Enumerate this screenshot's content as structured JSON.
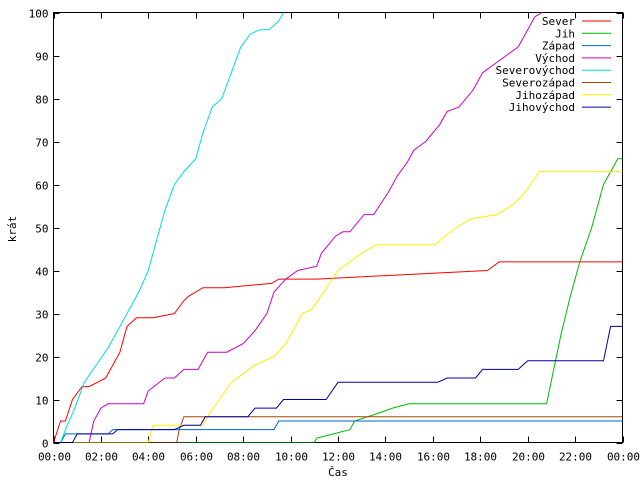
{
  "chart_data": {
    "type": "line",
    "title": "",
    "xlabel": "Čas",
    "ylabel": "krát",
    "xlim": [
      0,
      24
    ],
    "ylim": [
      0,
      100
    ],
    "x_ticks": [
      {
        "value": 0,
        "label": "00:00"
      },
      {
        "value": 2,
        "label": "02:00"
      },
      {
        "value": 4,
        "label": "04:00"
      },
      {
        "value": 6,
        "label": "06:00"
      },
      {
        "value": 8,
        "label": "08:00"
      },
      {
        "value": 10,
        "label": "10:00"
      },
      {
        "value": 12,
        "label": "12:00"
      },
      {
        "value": 14,
        "label": "14:00"
      },
      {
        "value": 16,
        "label": "16:00"
      },
      {
        "value": 18,
        "label": "18:00"
      },
      {
        "value": 20,
        "label": "20:00"
      },
      {
        "value": 22,
        "label": "22:00"
      },
      {
        "value": 24,
        "label": "00:00"
      }
    ],
    "y_ticks": [
      0,
      10,
      20,
      30,
      40,
      50,
      60,
      70,
      80,
      90,
      100
    ],
    "grid": false,
    "legend_position": "top-right",
    "series": [
      {
        "name": "Sever",
        "color": "#ff0000",
        "x": [
          0,
          0.3,
          0.5,
          0.8,
          1.2,
          1.5,
          2.2,
          2.5,
          2.8,
          3.0,
          3.1,
          3.3,
          3.5,
          3.9,
          4.2,
          5.1,
          5.5,
          5.7,
          6.3,
          7.2,
          9.2,
          9.5,
          11.1,
          18.3,
          18.8,
          24
        ],
        "y": [
          0,
          5,
          5,
          10,
          13,
          13,
          15,
          18,
          21,
          25,
          27,
          28,
          29,
          29,
          29,
          30,
          33,
          34,
          36,
          36,
          37,
          38,
          38,
          40,
          42,
          42
        ]
      },
      {
        "name": "Jih",
        "color": "#00bb00",
        "x": [
          0,
          11.0,
          11.1,
          11.8,
          12.5,
          12.7,
          13.8,
          14.3,
          15.0,
          20.8,
          21.1,
          21.4,
          21.8,
          22.2,
          22.7,
          23.2,
          23.5,
          23.8,
          24
        ],
        "y": [
          0,
          0,
          1,
          2,
          3,
          5,
          7,
          8,
          9,
          9,
          17,
          25,
          34,
          42,
          50,
          60,
          63,
          66,
          66
        ]
      },
      {
        "name": "Západ",
        "color": "#0066cc",
        "x": [
          0,
          0.3,
          0.5,
          2.3,
          2.5,
          9.3,
          9.5,
          24
        ],
        "y": [
          0,
          0,
          2,
          2,
          3,
          3,
          5,
          5
        ]
      },
      {
        "name": "Východ",
        "color": "#cc00cc",
        "x": [
          0,
          1.5,
          1.7,
          2.0,
          2.3,
          3.8,
          4.0,
          4.7,
          5.1,
          5.5,
          6.1,
          6.5,
          7.3,
          8.0,
          8.5,
          9.0,
          9.3,
          9.8,
          10.3,
          11.1,
          11.3,
          11.6,
          11.9,
          12.2,
          12.5,
          13.1,
          13.5,
          14.1,
          14.5,
          14.9,
          15.2,
          15.7,
          16.3,
          16.6,
          17.1,
          17.7,
          18.1,
          19.1,
          19.6,
          20.0,
          20.3,
          20.6
        ],
        "y": [
          0,
          0,
          5,
          8,
          9,
          9,
          12,
          15,
          15,
          17,
          17,
          21,
          21,
          23,
          26,
          30,
          35,
          38,
          40,
          41,
          44,
          46,
          48,
          49,
          49,
          53,
          53,
          58,
          62,
          65,
          68,
          70,
          74,
          77,
          78,
          82,
          86,
          90,
          92,
          96,
          99,
          100
        ]
      },
      {
        "name": "Severovýchod",
        "color": "#00dddd",
        "x": [
          0,
          0.3,
          0.5,
          0.9,
          1.3,
          1.8,
          2.3,
          2.7,
          3.2,
          3.6,
          4.0,
          4.3,
          4.7,
          5.1,
          5.5,
          6.0,
          6.3,
          6.7,
          7.1,
          7.5,
          7.9,
          8.3,
          8.7,
          9.1,
          9.5,
          9.7
        ],
        "y": [
          0,
          0,
          3,
          8,
          14,
          18,
          22,
          26,
          31,
          35,
          40,
          46,
          54,
          60,
          63,
          66,
          72,
          78,
          80,
          86,
          92,
          95,
          96,
          96,
          98,
          100
        ]
      },
      {
        "name": "Severozápad",
        "color": "#aa4400",
        "x": [
          0,
          5.2,
          5.3,
          5.5,
          24
        ],
        "y": [
          0,
          0,
          3,
          6,
          6
        ]
      },
      {
        "name": "Jihozápad",
        "color": "#ffee00",
        "x": [
          0,
          4.0,
          4.2,
          6.3,
          6.6,
          7.0,
          7.5,
          8.0,
          8.5,
          9.3,
          9.8,
          10.1,
          10.5,
          10.9,
          11.4,
          12.0,
          12.5,
          13.0,
          13.6,
          16.1,
          16.5,
          17.0,
          17.6,
          18.7,
          19.3,
          19.7,
          20.0,
          20.5,
          24
        ],
        "y": [
          0,
          0,
          4,
          4,
          7,
          10,
          14,
          16,
          18,
          20,
          23,
          26,
          30,
          31,
          35,
          40,
          42,
          44,
          46,
          46,
          48,
          50,
          52,
          53,
          55,
          57,
          59,
          63,
          63
        ]
      },
      {
        "name": "Jihovýchod",
        "color": "#0000aa",
        "x": [
          0,
          0.8,
          1.0,
          2.5,
          2.7,
          5.1,
          5.5,
          6.2,
          6.4,
          8.2,
          8.5,
          9.4,
          9.7,
          11.5,
          12.0,
          16.2,
          16.6,
          17.8,
          18.1,
          19.6,
          20.0,
          23.2,
          23.5,
          24
        ],
        "y": [
          0,
          0,
          2,
          2,
          3,
          3,
          4,
          4,
          6,
          6,
          8,
          8,
          10,
          10,
          14,
          14,
          15,
          15,
          17,
          17,
          19,
          19,
          27,
          27
        ]
      }
    ]
  }
}
